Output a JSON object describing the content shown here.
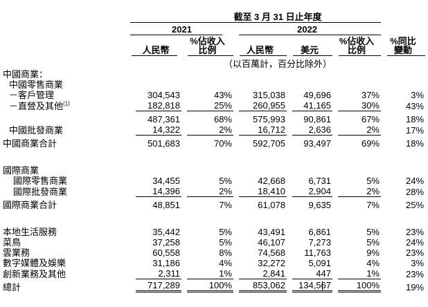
{
  "colors": {
    "background": "#ffffff",
    "text": "#000000",
    "rule": "#000000"
  },
  "table": {
    "period_header": "截至 3 月 31 日止年度",
    "year_2021": "2021",
    "year_2022": "2022",
    "col_headers": {
      "rmb_2021": "人民幣",
      "pct_2021_line1": "%佔收入",
      "pct_2021_line2": "比例",
      "rmb_2022": "人民幣",
      "usd_2022": "美元",
      "pct_2022_line1": "%佔收入",
      "pct_2022_line2": "比例",
      "yoy_line1": "%同比",
      "yoy_line2": "變動"
    },
    "units_note": "（以百萬計，百分比除外）",
    "rows": [
      {
        "label": "中國商業：",
        "indent": 0,
        "values": [
          "",
          "",
          "",
          "",
          "",
          ""
        ]
      },
      {
        "label": "中國零售商業",
        "indent": 1,
        "values": [
          "",
          "",
          "",
          "",
          "",
          ""
        ]
      },
      {
        "label": "－客戶管理",
        "indent": 1,
        "values": [
          "304,543",
          "43%",
          "315,038",
          "49,696",
          "37%",
          "3%"
        ]
      },
      {
        "label": "－直營及其他",
        "sup": "(1)",
        "indent": 1,
        "rule": "single",
        "values": [
          "182,818",
          "25%",
          "260,955",
          "41,165",
          "30%",
          "43%"
        ]
      },
      {
        "label": "",
        "indent": 1,
        "values": [
          "487,361",
          "68%",
          "575,993",
          "90,861",
          "67%",
          "18%"
        ]
      },
      {
        "label": "中國批發商業",
        "indent": 1,
        "rule": "single",
        "values": [
          "14,322",
          "2%",
          "16,712",
          "2,636",
          "2%",
          "17%"
        ]
      },
      {
        "label": "中國商業合計",
        "indent": 0,
        "values": [
          "501,683",
          "70%",
          "592,705",
          "93,497",
          "69%",
          "18%"
        ]
      },
      {
        "label": "國際商業",
        "indent": 0,
        "gap_before": true,
        "values": [
          "",
          "",
          "",
          "",
          "",
          ""
        ]
      },
      {
        "label": "國際零售商業",
        "indent": 2,
        "values": [
          "34,455",
          "5%",
          "42,668",
          "6,731",
          "5%",
          "24%"
        ]
      },
      {
        "label": "國際批發商業",
        "indent": 2,
        "rule": "single",
        "values": [
          "14,396",
          "2%",
          "18,410",
          "2,904",
          "2%",
          "28%"
        ]
      },
      {
        "label": "國際商業合計",
        "indent": 0,
        "values": [
          "48,851",
          "7%",
          "61,078",
          "9,635",
          "7%",
          "25%"
        ]
      },
      {
        "label": "本地生活服務",
        "indent": 0,
        "gap_before": true,
        "values": [
          "35,442",
          "5%",
          "43,491",
          "6,861",
          "5%",
          "23%"
        ]
      },
      {
        "label": "菜鳥",
        "indent": 0,
        "values": [
          "37,258",
          "5%",
          "46,107",
          "7,273",
          "5%",
          "24%"
        ]
      },
      {
        "label": "雲業務",
        "indent": 0,
        "values": [
          "60,558",
          "8%",
          "74,568",
          "11,763",
          "9%",
          "23%"
        ]
      },
      {
        "label": "數字媒體及娛樂",
        "indent": 0,
        "values": [
          "31,186",
          "4%",
          "32,272",
          "5,091",
          "4%",
          "3%"
        ]
      },
      {
        "label": "創新業務及其他",
        "indent": 0,
        "rule": "single",
        "values": [
          "2,311",
          "1%",
          "2,841",
          "447",
          "1%",
          "23%"
        ]
      },
      {
        "label": "總計",
        "indent": 0,
        "rule": "double",
        "values": [
          "717,289",
          "100%",
          "853,062",
          "134,567",
          "100%",
          "19%"
        ]
      }
    ]
  }
}
